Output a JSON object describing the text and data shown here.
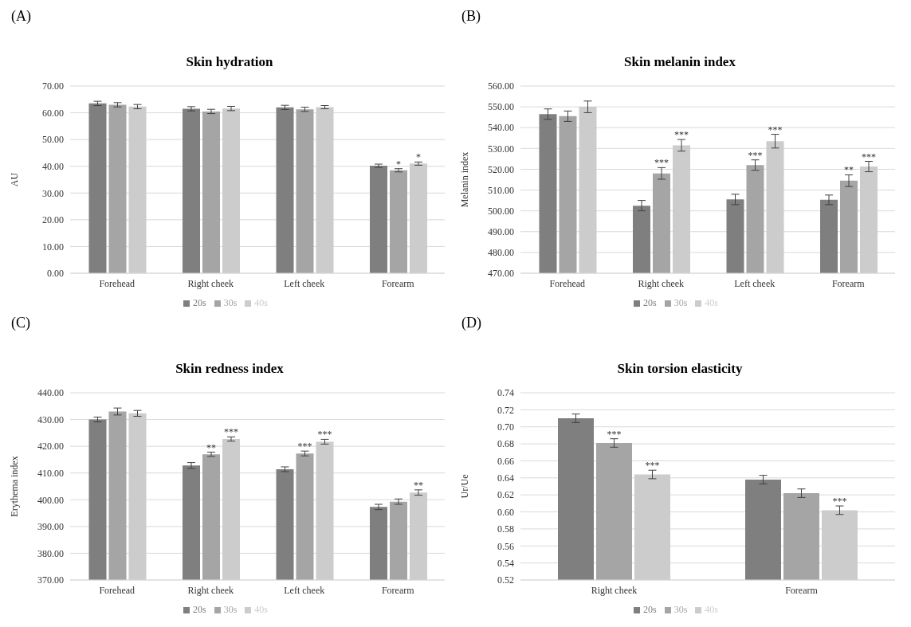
{
  "chart_data": [
    {
      "type": "bar",
      "title": "Skin hydration",
      "ylabel": "AU",
      "annotations": [
        "(A)"
      ],
      "categories": [
        "Forehead",
        "Right cheek",
        "Left cheek",
        "Forearm"
      ],
      "series": [
        {
          "name": "20s",
          "color": "#7f7f7f",
          "values": [
            63.5,
            61.5,
            62.0,
            40.2
          ],
          "errors": [
            0.8,
            0.8,
            0.8,
            0.6
          ],
          "value_labels": [
            null,
            null,
            null,
            null
          ]
        },
        {
          "name": "30s",
          "color": "#a5a5a5",
          "values": [
            63.0,
            60.5,
            61.3,
            38.5
          ],
          "errors": [
            0.8,
            0.8,
            0.8,
            0.6
          ],
          "value_labels": [
            null,
            null,
            null,
            "*"
          ]
        },
        {
          "name": "40s",
          "color": "#cccccc",
          "values": [
            62.3,
            61.6,
            62.1,
            41.0
          ],
          "errors": [
            0.8,
            0.8,
            0.6,
            0.6
          ],
          "value_labels": [
            null,
            null,
            null,
            "*"
          ]
        }
      ],
      "ylim": [
        0,
        70
      ],
      "yticks": [
        {
          "value": 0,
          "label": "0.00"
        },
        {
          "value": 10,
          "label": "10.00"
        },
        {
          "value": 20,
          "label": "20.00"
        },
        {
          "value": 30,
          "label": "30.00"
        },
        {
          "value": 40,
          "label": "40.00"
        },
        {
          "value": 50,
          "label": "50.00"
        },
        {
          "value": 60,
          "label": "60.00"
        },
        {
          "value": 70,
          "label": "70.00"
        }
      ],
      "grid": "y",
      "legend": "bottom"
    },
    {
      "type": "bar",
      "title": "Skin melanin index",
      "ylabel": "Melanin index",
      "annotations": [
        "(B)"
      ],
      "categories": [
        "Forehead",
        "Right cheek",
        "Left cheek",
        "Forearm"
      ],
      "series": [
        {
          "name": "20s",
          "color": "#7f7f7f",
          "values": [
            546.5,
            502.5,
            505.5,
            505.3
          ],
          "errors": [
            2.5,
            2.5,
            2.5,
            2.3
          ],
          "value_labels": [
            null,
            null,
            null,
            null
          ]
        },
        {
          "name": "30s",
          "color": "#a5a5a5",
          "values": [
            545.5,
            518,
            522,
            514.5
          ],
          "errors": [
            2.5,
            2.8,
            2.5,
            2.8
          ],
          "value_labels": [
            null,
            "***",
            "***",
            "**"
          ]
        },
        {
          "name": "40s",
          "color": "#cccccc",
          "values": [
            550,
            531.5,
            533.5,
            521.3
          ],
          "errors": [
            2.8,
            2.8,
            3.3,
            2.5
          ],
          "value_labels": [
            null,
            "***",
            "***",
            "***"
          ]
        }
      ],
      "ylim": [
        470,
        560
      ],
      "yticks": [
        {
          "value": 470,
          "label": "470.00"
        },
        {
          "value": 480,
          "label": "480.00"
        },
        {
          "value": 490,
          "label": "490.00"
        },
        {
          "value": 500,
          "label": "500.00"
        },
        {
          "value": 510,
          "label": "510.00"
        },
        {
          "value": 520,
          "label": "520.00"
        },
        {
          "value": 530,
          "label": "530.00"
        },
        {
          "value": 540,
          "label": "540.00"
        },
        {
          "value": 550,
          "label": "550.00"
        },
        {
          "value": 560,
          "label": "560.00"
        }
      ],
      "grid": "y",
      "legend": "bottom"
    },
    {
      "type": "bar",
      "title": "Skin redness index",
      "ylabel": "Erythema index",
      "annotations": [
        "(C)"
      ],
      "categories": [
        "Forehead",
        "Right cheek",
        "Left cheek",
        "Forearm"
      ],
      "series": [
        {
          "name": "20s",
          "color": "#7f7f7f",
          "values": [
            430,
            412.8,
            411.4,
            397.3
          ],
          "errors": [
            0.9,
            1.1,
            0.9,
            1.0
          ],
          "value_labels": [
            null,
            null,
            null,
            null
          ]
        },
        {
          "name": "30s",
          "color": "#a5a5a5",
          "values": [
            433,
            417,
            417.3,
            399.3
          ],
          "errors": [
            1.3,
            0.8,
            0.9,
            1.0
          ],
          "value_labels": [
            null,
            "**",
            "***",
            null
          ]
        },
        {
          "name": "40s",
          "color": "#cccccc",
          "values": [
            432.3,
            422.7,
            421.7,
            402.7
          ],
          "errors": [
            1.1,
            0.8,
            0.9,
            1.0
          ],
          "value_labels": [
            null,
            "***",
            "***",
            "**"
          ]
        }
      ],
      "ylim": [
        370,
        440
      ],
      "yticks": [
        {
          "value": 370,
          "label": "370.00"
        },
        {
          "value": 380,
          "label": "380.00"
        },
        {
          "value": 390,
          "label": "390.00"
        },
        {
          "value": 400,
          "label": "400.00"
        },
        {
          "value": 410,
          "label": "410.00"
        },
        {
          "value": 420,
          "label": "420.00"
        },
        {
          "value": 430,
          "label": "430.00"
        },
        {
          "value": 440,
          "label": "440.00"
        }
      ],
      "grid": "y",
      "legend": "bottom"
    },
    {
      "type": "bar",
      "title": "Skin torsion elasticity",
      "ylabel": "Ur/Ue",
      "annotations": [
        "(D)"
      ],
      "categories": [
        "Right cheek",
        "Forearm"
      ],
      "series": [
        {
          "name": "20s",
          "color": "#7f7f7f",
          "values": [
            0.71,
            0.638
          ],
          "errors": [
            0.005,
            0.005
          ],
          "value_labels": [
            null,
            null
          ]
        },
        {
          "name": "30s",
          "color": "#a5a5a5",
          "values": [
            0.681,
            0.622
          ],
          "errors": [
            0.005,
            0.005
          ],
          "value_labels": [
            "***",
            null
          ]
        },
        {
          "name": "40s",
          "color": "#cccccc",
          "values": [
            0.644,
            0.602
          ],
          "errors": [
            0.005,
            0.005
          ],
          "value_labels": [
            "***",
            "***"
          ]
        }
      ],
      "ylim": [
        0.52,
        0.74
      ],
      "yticks": [
        {
          "value": 0.52,
          "label": "0.52"
        },
        {
          "value": 0.54,
          "label": "0.54"
        },
        {
          "value": 0.56,
          "label": "0.56"
        },
        {
          "value": 0.58,
          "label": "0.58"
        },
        {
          "value": 0.6,
          "label": "0.60"
        },
        {
          "value": 0.62,
          "label": "0.62"
        },
        {
          "value": 0.64,
          "label": "0.64"
        },
        {
          "value": 0.66,
          "label": "0.66"
        },
        {
          "value": 0.68,
          "label": "0.68"
        },
        {
          "value": 0.7,
          "label": "0.70"
        },
        {
          "value": 0.72,
          "label": "0.72"
        },
        {
          "value": 0.74,
          "label": "0.74"
        }
      ],
      "grid": "y",
      "legend": "bottom"
    }
  ]
}
